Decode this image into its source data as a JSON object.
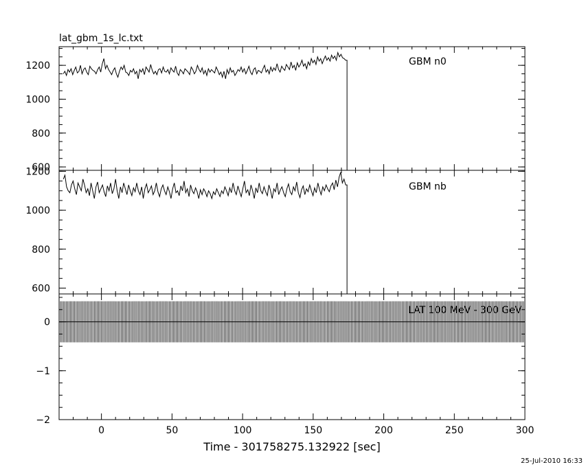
{
  "file_title": "lat_gbm_1s_lc.txt",
  "timestamp": "25-Jul-2010 16:33",
  "chart_data": [
    {
      "type": "line",
      "panel": "top",
      "label": "GBM n0",
      "xlim": [
        -30,
        300
      ],
      "ylim": [
        580,
        1310
      ],
      "yticks": [
        600,
        800,
        1000,
        1200
      ],
      "ytick_labels": [
        "600",
        "800",
        "1000",
        "1200"
      ],
      "series": [
        {
          "name": "GBM n0",
          "data_end_x": 174,
          "values": [
            1150,
            1165,
            1140,
            1175,
            1160,
            1180,
            1145,
            1170,
            1190,
            1155,
            1165,
            1200,
            1150,
            1175,
            1185,
            1160,
            1145,
            1195,
            1180,
            1170,
            1165,
            1150,
            1175,
            1190,
            1160,
            1210,
            1240,
            1180,
            1200,
            1175,
            1160,
            1145,
            1170,
            1185,
            1150,
            1130,
            1165,
            1190,
            1175,
            1200,
            1160,
            1155,
            1140,
            1170,
            1160,
            1180,
            1150,
            1165,
            1120,
            1175,
            1160,
            1180,
            1145,
            1190,
            1175,
            1160,
            1205,
            1170,
            1150,
            1165,
            1145,
            1175,
            1180,
            1155,
            1190,
            1165,
            1160,
            1175,
            1150,
            1185,
            1170,
            1160,
            1195,
            1155,
            1140,
            1175,
            1165,
            1150,
            1180,
            1170,
            1160,
            1145,
            1190,
            1175,
            1150,
            1165,
            1200,
            1175,
            1160,
            1185,
            1150,
            1170,
            1140,
            1180,
            1160,
            1175,
            1165,
            1155,
            1190,
            1170,
            1145,
            1160,
            1130,
            1165,
            1120,
            1175,
            1150,
            1185,
            1160,
            1170,
            1140,
            1155,
            1175,
            1165,
            1190,
            1160,
            1180,
            1150,
            1170,
            1195,
            1160,
            1145,
            1175,
            1185,
            1150,
            1170,
            1165,
            1155,
            1180,
            1200,
            1160,
            1175,
            1150,
            1190,
            1165,
            1185,
            1170,
            1210,
            1175,
            1160,
            1195,
            1180,
            1170,
            1205,
            1190,
            1175,
            1220,
            1185,
            1200,
            1170,
            1215,
            1190,
            1205,
            1230,
            1195,
            1210,
            1180,
            1220,
            1200,
            1240,
            1215,
            1230,
            1205,
            1250,
            1225,
            1240,
            1210,
            1235,
            1255,
            1230,
            1245,
            1225,
            1260,
            1240,
            1255,
            1230,
            1275,
            1250,
            1265,
            1245,
            1240,
            1230
          ]
        }
      ]
    },
    {
      "type": "line",
      "panel": "middle",
      "label": "GBM nb",
      "xlim": [
        -30,
        300
      ],
      "ylim": [
        570,
        1205
      ],
      "yticks": [
        600,
        800,
        1000,
        1200
      ],
      "ytick_labels": [
        "600",
        "800",
        "1000",
        "1200"
      ],
      "series": [
        {
          "name": "GBM nb",
          "data_end_x": 174,
          "values": [
            1160,
            1180,
            1120,
            1100,
            1090,
            1130,
            1150,
            1110,
            1080,
            1140,
            1120,
            1100,
            1160,
            1130,
            1090,
            1110,
            1075,
            1140,
            1100,
            1060,
            1120,
            1145,
            1090,
            1110,
            1130,
            1095,
            1070,
            1125,
            1100,
            1140,
            1085,
            1110,
            1160,
            1100,
            1060,
            1120,
            1090,
            1140,
            1110,
            1080,
            1130,
            1100,
            1075,
            1115,
            1095,
            1140,
            1100,
            1080,
            1120,
            1060,
            1110,
            1135,
            1090,
            1105,
            1125,
            1080,
            1100,
            1140,
            1095,
            1070,
            1110,
            1130,
            1100,
            1080,
            1120,
            1095,
            1060,
            1110,
            1140,
            1090,
            1100,
            1075,
            1125,
            1100,
            1150,
            1090,
            1110,
            1070,
            1130,
            1100,
            1085,
            1115,
            1095,
            1060,
            1105,
            1080,
            1110,
            1095,
            1070,
            1100,
            1085,
            1060,
            1095,
            1080,
            1110,
            1090,
            1070,
            1100,
            1085,
            1120,
            1100,
            1075,
            1115,
            1090,
            1140,
            1100,
            1080,
            1125,
            1095,
            1070,
            1110,
            1150,
            1090,
            1105,
            1075,
            1130,
            1100,
            1060,
            1115,
            1090,
            1140,
            1100,
            1085,
            1120,
            1095,
            1075,
            1130,
            1100,
            1060,
            1110,
            1095,
            1140,
            1080,
            1105,
            1120,
            1090,
            1070,
            1110,
            1135,
            1095,
            1080,
            1120,
            1100,
            1145,
            1090,
            1065,
            1105,
            1125,
            1080,
            1110,
            1095,
            1130,
            1100,
            1075,
            1115,
            1090,
            1140,
            1105,
            1080,
            1120,
            1100,
            1130,
            1110,
            1095,
            1125,
            1140,
            1105,
            1155,
            1120,
            1170,
            1195,
            1140,
            1160,
            1130
          ]
        }
      ]
    },
    {
      "type": "bar",
      "panel": "bottom",
      "label": "LAT 100 MeV - 300 GeV",
      "xlabel": "Time - 301758275.132922 [sec]",
      "xlim": [
        -30,
        300
      ],
      "xticks": [
        0,
        50,
        100,
        150,
        200,
        250,
        300
      ],
      "xtick_labels": [
        "0",
        "50",
        "100",
        "150",
        "200",
        "250",
        "300"
      ],
      "ylim": [
        -2,
        0.57
      ],
      "yticks": [
        -2,
        -1,
        0
      ],
      "ytick_labels": [
        "−2",
        "−1",
        "0"
      ],
      "series": [
        {
          "name": "LAT 100 MeV - 300 GeV",
          "x_start": -30,
          "x_end": 300,
          "step": 1,
          "value": 0,
          "error": 0.42
        }
      ]
    }
  ]
}
